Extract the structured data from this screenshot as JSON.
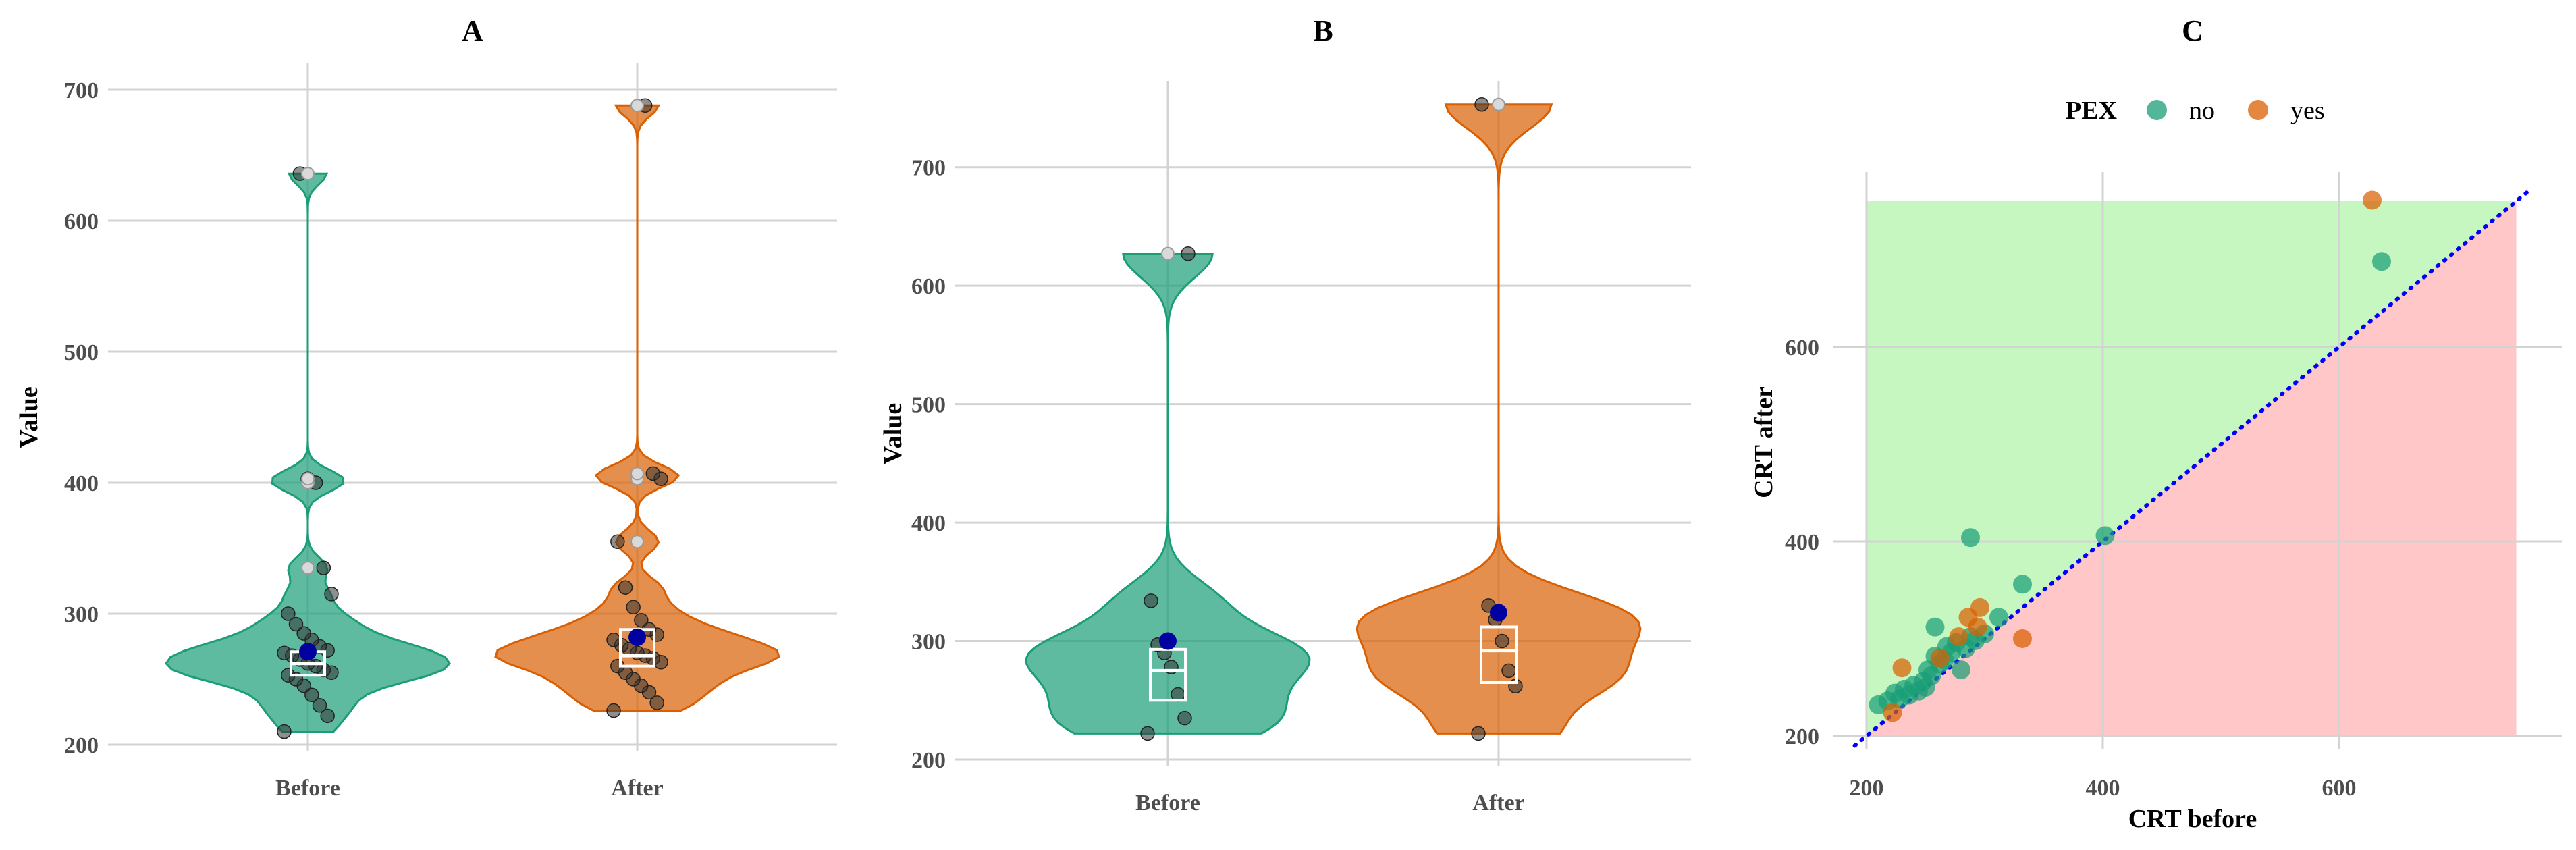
{
  "chart_data": [
    {
      "id": "A",
      "type": "violin",
      "title": "A",
      "ylabel": "Value",
      "xlabel": "",
      "ylim": [
        200,
        700
      ],
      "yticks": [
        200,
        300,
        400,
        500,
        600,
        700
      ],
      "grid": true,
      "categories": [
        "Before",
        "After"
      ],
      "colors": [
        "#1b9e77",
        "#d95f02"
      ],
      "series": [
        {
          "name": "Before",
          "boxplot": {
            "q1": 253,
            "median": 262,
            "q3": 271
          },
          "mean": 271,
          "points": [
            210,
            222,
            230,
            238,
            245,
            250,
            253,
            255,
            257,
            260,
            262,
            265,
            268,
            270,
            272,
            275,
            280,
            285,
            292,
            300,
            315,
            335,
            400,
            403,
            636
          ],
          "outliers": [
            335,
            400,
            403,
            636
          ]
        },
        {
          "name": "After",
          "boxplot": {
            "q1": 260,
            "median": 268,
            "q3": 288
          },
          "mean": 282,
          "points": [
            226,
            232,
            240,
            245,
            250,
            255,
            260,
            263,
            266,
            268,
            270,
            273,
            276,
            280,
            284,
            288,
            295,
            305,
            320,
            355,
            403,
            407,
            688
          ],
          "outliers": [
            355,
            403,
            407,
            688
          ]
        }
      ]
    },
    {
      "id": "B",
      "type": "violin",
      "title": "B",
      "ylabel": "Value",
      "xlabel": "",
      "ylim": [
        200,
        750
      ],
      "yticks": [
        200,
        300,
        400,
        500,
        600,
        700
      ],
      "grid": true,
      "categories": [
        "Before",
        "After"
      ],
      "colors": [
        "#1b9e77",
        "#d95f02"
      ],
      "series": [
        {
          "name": "Before",
          "boxplot": {
            "q1": 250,
            "median": 275,
            "q3": 293
          },
          "mean": 300,
          "points": [
            222,
            235,
            255,
            278,
            290,
            297,
            334,
            627
          ],
          "outliers": [
            627
          ]
        },
        {
          "name": "After",
          "boxplot": {
            "q1": 265,
            "median": 292,
            "q3": 312
          },
          "mean": 324,
          "points": [
            222,
            262,
            275,
            300,
            318,
            330,
            753
          ],
          "outliers": [
            753
          ]
        }
      ]
    },
    {
      "id": "C",
      "type": "scatter",
      "title": "C",
      "xlabel": "CRT before",
      "ylabel": "CRT after",
      "xlim": [
        190,
        760
      ],
      "ylim": [
        190,
        760
      ],
      "xticks": [
        200,
        400,
        600
      ],
      "yticks": [
        200,
        400,
        600
      ],
      "grid": true,
      "legend": {
        "title": "PEX",
        "position": "top",
        "entries": [
          {
            "label": "no",
            "color": "#1b9e77"
          },
          {
            "label": "yes",
            "color": "#d95f02"
          }
        ]
      },
      "reference_line": {
        "type": "identity",
        "color": "#0000ff",
        "style": "dotted"
      },
      "regions": [
        {
          "name": "above",
          "color": "#c7f7c0",
          "range": [
            200,
            750
          ]
        },
        {
          "name": "below",
          "color": "#ffc7c7",
          "range": [
            200,
            750
          ]
        }
      ],
      "series": [
        {
          "name": "no",
          "points": [
            [
              210,
              232
            ],
            [
              218,
              236
            ],
            [
              224,
              244
            ],
            [
              228,
              238
            ],
            [
              232,
              248
            ],
            [
              236,
              242
            ],
            [
              240,
              252
            ],
            [
              244,
              246
            ],
            [
              248,
              256
            ],
            [
              250,
              250
            ],
            [
              252,
              268
            ],
            [
              255,
              262
            ],
            [
              258,
              282
            ],
            [
              262,
              274
            ],
            [
              266,
              278
            ],
            [
              268,
              292
            ],
            [
              272,
              286
            ],
            [
              276,
              296
            ],
            [
              280,
              268
            ],
            [
              284,
              290
            ],
            [
              288,
              302
            ],
            [
              292,
              298
            ],
            [
              258,
              312
            ],
            [
              300,
              305
            ],
            [
              312,
              322
            ],
            [
              332,
              356
            ],
            [
              288,
              404
            ],
            [
              402,
              406
            ],
            [
              636,
              688
            ]
          ]
        },
        {
          "name": "yes",
          "points": [
            [
              222,
              224
            ],
            [
              230,
              270
            ],
            [
              262,
              280
            ],
            [
              278,
              302
            ],
            [
              286,
              322
            ],
            [
              294,
              312
            ],
            [
              296,
              332
            ],
            [
              332,
              300
            ],
            [
              628,
              751
            ]
          ]
        }
      ]
    }
  ]
}
